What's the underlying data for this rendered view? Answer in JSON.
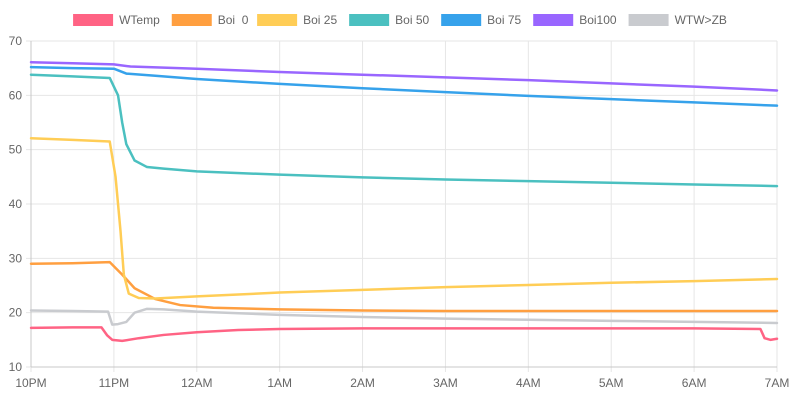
{
  "chart_data": {
    "type": "line",
    "title": "",
    "xlabel": "",
    "ylabel": "",
    "ylim": [
      10,
      70
    ],
    "y_ticks": [
      10,
      20,
      30,
      40,
      50,
      60,
      70
    ],
    "x_range": [
      0,
      9
    ],
    "x_ticks": [
      {
        "x": 0,
        "label": "10PM"
      },
      {
        "x": 1,
        "label": "11PM"
      },
      {
        "x": 2,
        "label": "12AM"
      },
      {
        "x": 3,
        "label": "1AM"
      },
      {
        "x": 4,
        "label": "2AM"
      },
      {
        "x": 5,
        "label": "3AM"
      },
      {
        "x": 6,
        "label": "4AM"
      },
      {
        "x": 7,
        "label": "5AM"
      },
      {
        "x": 8,
        "label": "6AM"
      },
      {
        "x": 9,
        "label": "7AM"
      }
    ],
    "grid": true,
    "legend_position": "top",
    "series": [
      {
        "name": "WTemp",
        "color": "#ff6384",
        "points": [
          [
            0,
            17.2
          ],
          [
            0.5,
            17.3
          ],
          [
            0.85,
            17.3
          ],
          [
            0.92,
            15.8
          ],
          [
            0.98,
            15.0
          ],
          [
            1.1,
            14.8
          ],
          [
            1.3,
            15.3
          ],
          [
            1.6,
            15.9
          ],
          [
            2.0,
            16.4
          ],
          [
            2.5,
            16.8
          ],
          [
            3.0,
            17.0
          ],
          [
            4.0,
            17.1
          ],
          [
            5.0,
            17.1
          ],
          [
            6.0,
            17.1
          ],
          [
            7.0,
            17.1
          ],
          [
            8.0,
            17.1
          ],
          [
            8.8,
            17.0
          ],
          [
            8.85,
            15.3
          ],
          [
            8.92,
            15.0
          ],
          [
            9.0,
            15.2
          ]
        ]
      },
      {
        "name": "Boi  0",
        "color": "#ff9f40",
        "points": [
          [
            0,
            29.0
          ],
          [
            0.5,
            29.1
          ],
          [
            0.95,
            29.3
          ],
          [
            1.1,
            27.0
          ],
          [
            1.25,
            24.5
          ],
          [
            1.5,
            22.5
          ],
          [
            1.8,
            21.4
          ],
          [
            2.2,
            20.9
          ],
          [
            3.0,
            20.6
          ],
          [
            4.0,
            20.4
          ],
          [
            5.0,
            20.3
          ],
          [
            6.0,
            20.3
          ],
          [
            7.0,
            20.3
          ],
          [
            8.0,
            20.3
          ],
          [
            9.0,
            20.3
          ]
        ]
      },
      {
        "name": "Boi 25",
        "color": "#ffcd56",
        "points": [
          [
            0,
            52.1
          ],
          [
            0.5,
            51.8
          ],
          [
            0.95,
            51.5
          ],
          [
            1.02,
            45.0
          ],
          [
            1.08,
            35.0
          ],
          [
            1.12,
            27.0
          ],
          [
            1.18,
            23.5
          ],
          [
            1.3,
            22.7
          ],
          [
            1.5,
            22.6
          ],
          [
            2.0,
            23.0
          ],
          [
            3.0,
            23.7
          ],
          [
            4.0,
            24.2
          ],
          [
            5.0,
            24.7
          ],
          [
            6.0,
            25.1
          ],
          [
            7.0,
            25.5
          ],
          [
            8.0,
            25.8
          ],
          [
            9.0,
            26.2
          ]
        ]
      },
      {
        "name": "Boi 50",
        "color": "#4bc0c0",
        "points": [
          [
            0,
            63.8
          ],
          [
            0.5,
            63.5
          ],
          [
            0.95,
            63.2
          ],
          [
            1.05,
            60.0
          ],
          [
            1.1,
            55.0
          ],
          [
            1.15,
            51.0
          ],
          [
            1.25,
            48.0
          ],
          [
            1.4,
            46.8
          ],
          [
            1.6,
            46.5
          ],
          [
            2.0,
            46.0
          ],
          [
            3.0,
            45.4
          ],
          [
            4.0,
            44.9
          ],
          [
            5.0,
            44.5
          ],
          [
            6.0,
            44.2
          ],
          [
            7.0,
            43.9
          ],
          [
            8.0,
            43.6
          ],
          [
            9.0,
            43.3
          ]
        ]
      },
      {
        "name": "Boi 75",
        "color": "#36a2eb",
        "points": [
          [
            0,
            65.2
          ],
          [
            0.5,
            65.0
          ],
          [
            1.0,
            64.9
          ],
          [
            1.15,
            64.0
          ],
          [
            1.5,
            63.6
          ],
          [
            2.0,
            63.0
          ],
          [
            3.0,
            62.1
          ],
          [
            4.0,
            61.3
          ],
          [
            5.0,
            60.6
          ],
          [
            6.0,
            59.9
          ],
          [
            7.0,
            59.3
          ],
          [
            8.0,
            58.7
          ],
          [
            9.0,
            58.1
          ]
        ]
      },
      {
        "name": "Boi100",
        "color": "#9966ff",
        "points": [
          [
            0,
            66.1
          ],
          [
            0.5,
            65.9
          ],
          [
            1.0,
            65.7
          ],
          [
            1.2,
            65.3
          ],
          [
            2.0,
            64.9
          ],
          [
            3.0,
            64.3
          ],
          [
            4.0,
            63.8
          ],
          [
            5.0,
            63.3
          ],
          [
            6.0,
            62.8
          ],
          [
            7.0,
            62.2
          ],
          [
            8.0,
            61.6
          ],
          [
            9.0,
            60.9
          ]
        ]
      },
      {
        "name": "WTW>ZB",
        "color": "#c9cbcf",
        "points": [
          [
            0,
            20.4
          ],
          [
            0.5,
            20.3
          ],
          [
            0.93,
            20.2
          ],
          [
            0.98,
            17.8
          ],
          [
            1.05,
            17.9
          ],
          [
            1.15,
            18.3
          ],
          [
            1.25,
            20.0
          ],
          [
            1.4,
            20.7
          ],
          [
            1.6,
            20.6
          ],
          [
            2.0,
            20.2
          ],
          [
            3.0,
            19.6
          ],
          [
            4.0,
            19.2
          ],
          [
            5.0,
            18.9
          ],
          [
            6.0,
            18.7
          ],
          [
            7.0,
            18.5
          ],
          [
            8.0,
            18.3
          ],
          [
            9.0,
            18.1
          ]
        ]
      }
    ]
  }
}
